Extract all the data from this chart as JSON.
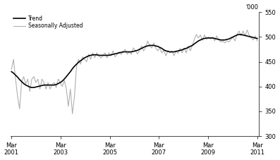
{
  "ylabel": "'000",
  "ylim": [
    300,
    550
  ],
  "yticks": [
    300,
    350,
    400,
    450,
    500,
    550
  ],
  "xtick_years": [
    2001,
    2003,
    2005,
    2007,
    2009,
    2011
  ],
  "trend_color": "#000000",
  "sa_color": "#b0b0b0",
  "trend_linewidth": 1.2,
  "sa_linewidth": 0.8,
  "legend_labels": [
    "Trend",
    "Seasonally Adjusted"
  ],
  "background_color": "#ffffff",
  "trend": [
    430,
    427,
    423,
    419,
    414,
    410,
    406,
    403,
    401,
    399,
    398,
    398,
    399,
    400,
    401,
    402,
    403,
    403,
    403,
    403,
    403,
    403,
    404,
    406,
    408,
    411,
    415,
    420,
    425,
    430,
    436,
    441,
    445,
    449,
    452,
    455,
    458,
    460,
    462,
    463,
    464,
    464,
    464,
    463,
    463,
    463,
    463,
    463,
    463,
    464,
    465,
    466,
    467,
    468,
    469,
    470,
    470,
    470,
    470,
    470,
    471,
    472,
    473,
    475,
    477,
    479,
    481,
    482,
    483,
    483,
    483,
    482,
    481,
    479,
    477,
    474,
    472,
    471,
    470,
    470,
    470,
    471,
    472,
    473,
    474,
    476,
    477,
    479,
    481,
    483,
    486,
    489,
    492,
    494,
    496,
    497,
    498,
    498,
    498,
    498,
    497,
    496,
    495,
    494,
    494,
    494,
    495,
    496,
    498,
    500,
    502,
    504,
    505,
    505,
    504,
    503,
    502,
    501,
    500,
    499,
    498,
    497
  ],
  "sa": [
    435,
    455,
    415,
    380,
    355,
    410,
    420,
    405,
    415,
    390,
    415,
    420,
    408,
    415,
    395,
    415,
    408,
    395,
    408,
    395,
    403,
    408,
    398,
    415,
    408,
    400,
    412,
    395,
    360,
    395,
    345,
    380,
    440,
    455,
    445,
    460,
    455,
    450,
    465,
    455,
    468,
    458,
    468,
    462,
    458,
    462,
    468,
    458,
    468,
    462,
    472,
    460,
    465,
    470,
    465,
    470,
    475,
    465,
    470,
    465,
    478,
    472,
    466,
    472,
    482,
    472,
    478,
    492,
    482,
    478,
    488,
    478,
    472,
    478,
    468,
    473,
    462,
    472,
    468,
    472,
    462,
    472,
    467,
    477,
    468,
    478,
    468,
    482,
    472,
    483,
    495,
    505,
    498,
    504,
    493,
    504,
    495,
    500,
    496,
    500,
    492,
    502,
    495,
    490,
    492,
    488,
    492,
    490,
    495,
    500,
    492,
    505,
    512,
    502,
    512,
    502,
    514,
    504,
    498,
    494,
    502,
    492
  ]
}
